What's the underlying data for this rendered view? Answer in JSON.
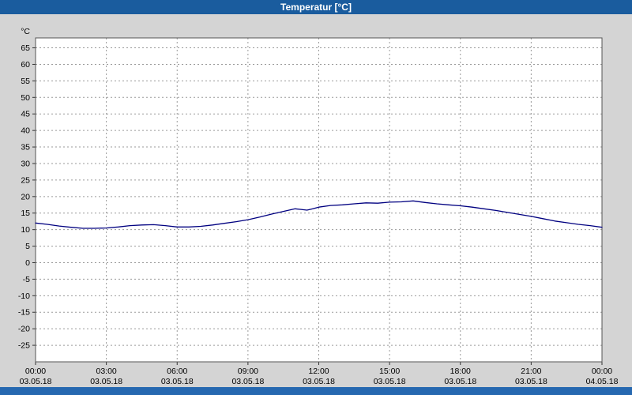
{
  "titlebar": {
    "title": "Temperatur [°C]",
    "bg": "#1a5c9e",
    "fg": "#ffffff"
  },
  "footer": {
    "bg": "#2668b0"
  },
  "colors": {
    "page_bg": "#d4d4d4",
    "plot_bg": "#ffffff",
    "grid": "#9a9a9a",
    "line": "#000080"
  },
  "chart_data": {
    "type": "line",
    "title": "Temperatur [°C]",
    "xlabel": "",
    "ylabel": "°C",
    "ylim": [
      -30,
      68
    ],
    "xlim_hours": [
      0,
      24
    ],
    "grid": true,
    "legend": "none",
    "y_ticks": [
      65,
      60,
      55,
      50,
      45,
      40,
      35,
      30,
      25,
      20,
      15,
      10,
      5,
      0,
      -5,
      -10,
      -15,
      -20,
      -25
    ],
    "x_ticks": [
      {
        "time": "00:00",
        "date": "03.05.18"
      },
      {
        "time": "03:00",
        "date": "03.05.18"
      },
      {
        "time": "06:00",
        "date": "03.05.18"
      },
      {
        "time": "09:00",
        "date": "03.05.18"
      },
      {
        "time": "12:00",
        "date": "03.05.18"
      },
      {
        "time": "15:00",
        "date": "03.05.18"
      },
      {
        "time": "18:00",
        "date": "03.05.18"
      },
      {
        "time": "21:00",
        "date": "03.05.18"
      },
      {
        "time": "00:00",
        "date": "04.05.18"
      }
    ],
    "series": [
      {
        "name": "Temperatur",
        "color": "#000080",
        "points": [
          [
            0,
            12
          ],
          [
            0.5,
            11.6
          ],
          [
            1,
            11.1
          ],
          [
            1.5,
            10.7
          ],
          [
            2,
            10.4
          ],
          [
            2.5,
            10.4
          ],
          [
            3,
            10.5
          ],
          [
            3.5,
            10.8
          ],
          [
            4,
            11.2
          ],
          [
            4.5,
            11.4
          ],
          [
            5,
            11.5
          ],
          [
            5.5,
            11.2
          ],
          [
            6,
            10.8
          ],
          [
            6.5,
            10.8
          ],
          [
            7,
            11
          ],
          [
            7.5,
            11.4
          ],
          [
            8,
            11.9
          ],
          [
            8.5,
            12.4
          ],
          [
            9,
            13
          ],
          [
            9.5,
            13.8
          ],
          [
            10,
            14.7
          ],
          [
            10.5,
            15.5
          ],
          [
            11,
            16.3
          ],
          [
            11.25,
            16.1
          ],
          [
            11.5,
            15.9
          ],
          [
            11.75,
            16.3
          ],
          [
            12,
            16.8
          ],
          [
            12.5,
            17.3
          ],
          [
            13,
            17.5
          ],
          [
            13.5,
            17.8
          ],
          [
            14,
            18.1
          ],
          [
            14.5,
            18
          ],
          [
            15,
            18.3
          ],
          [
            15.5,
            18.4
          ],
          [
            16,
            18.7
          ],
          [
            16.5,
            18.2
          ],
          [
            17,
            17.8
          ],
          [
            17.5,
            17.5
          ],
          [
            18,
            17.2
          ],
          [
            18.5,
            16.8
          ],
          [
            19,
            16.3
          ],
          [
            19.5,
            15.8
          ],
          [
            20,
            15.2
          ],
          [
            20.5,
            14.6
          ],
          [
            21,
            14
          ],
          [
            21.5,
            13.3
          ],
          [
            22,
            12.6
          ],
          [
            22.5,
            12.1
          ],
          [
            23,
            11.6
          ],
          [
            23.5,
            11.2
          ],
          [
            24,
            10.7
          ]
        ]
      }
    ]
  }
}
